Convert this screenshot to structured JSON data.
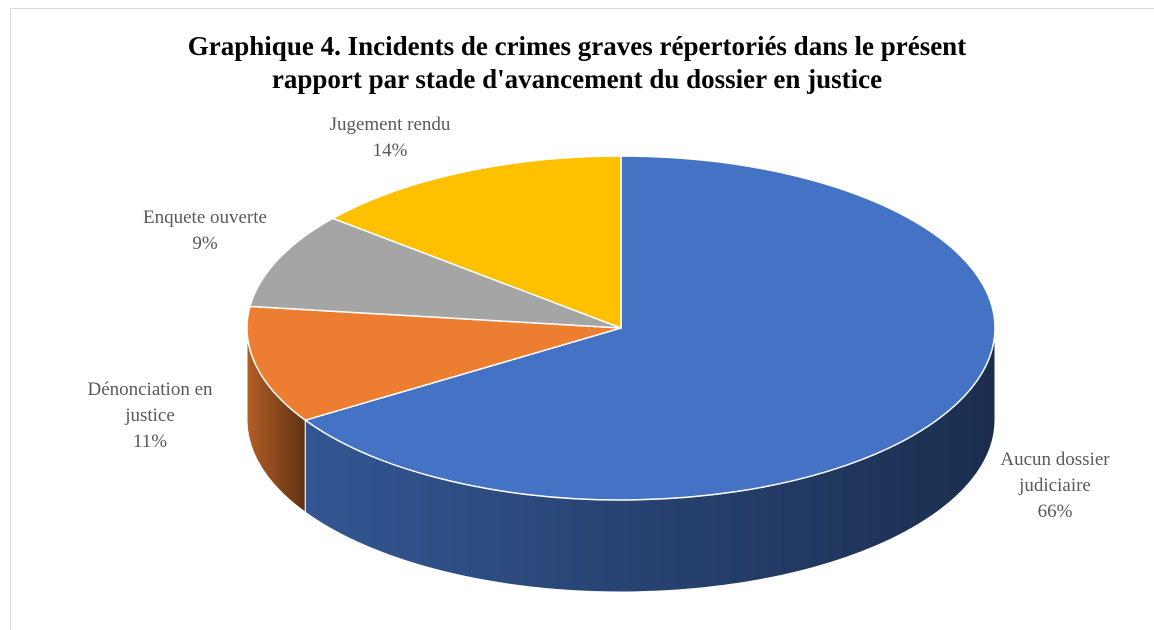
{
  "chart_data": {
    "type": "pie",
    "title": "Graphique 4. Incidents de crimes graves répertoriés dans le présent rapport par stade d'avancement du dossier en justice",
    "categories": [
      "Aucun dossier judiciaire",
      "Dénonciation en justice",
      "Enquete ouverte",
      "Jugement rendu"
    ],
    "values": [
      66,
      11,
      9,
      14
    ],
    "value_labels": [
      "66%",
      "11%",
      "9%",
      "14%"
    ],
    "colors": [
      "#4472c4",
      "#ed7d31",
      "#a5a5a5",
      "#ffc000"
    ]
  }
}
